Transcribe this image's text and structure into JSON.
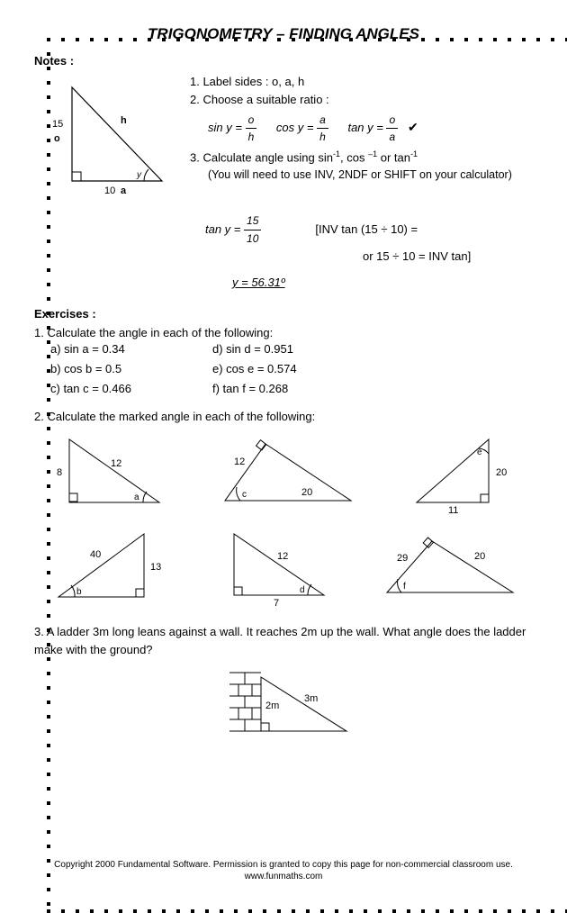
{
  "title": "TRIGONOMETRY – FINDING ANGLES",
  "notes_label": "Notes :",
  "exercises_label": "Exercises :",
  "diagram": {
    "o_val": "15",
    "o_lbl": "o",
    "a_val": "10",
    "a_lbl": "a",
    "h_lbl": "h",
    "angle": "y"
  },
  "step1": "1.  Label sides : o, a, h",
  "step2": "2.  Choose a suitable ratio :",
  "ratios": {
    "sin_l": "sin y =",
    "cos_l": "cos y =",
    "tan_l": "tan y =",
    "o": "o",
    "a": "a",
    "h": "h"
  },
  "step3a": "3.  Calculate angle using sin",
  "step3b": ", cos ",
  "step3c": " or tan",
  "step3_note": "(You will need to use INV, 2NDF or SHIFT on your calculator)",
  "worked": {
    "lhs": "tan y =",
    "num": "15",
    "den": "10",
    "rhs1": "[INV tan (15 ÷ 10) =",
    "rhs2": "or 15 ÷ 10 = INV tan]",
    "answer": "y = 56.31º"
  },
  "ex1": {
    "q": "1.  Calculate the angle in each of the following:",
    "a": "a)   sin a = 0.34",
    "b": "b)   cos b = 0.5",
    "c": "c)   tan c = 0.466",
    "d": "d)   sin d = 0.951",
    "e": "e)   cos e = 0.574",
    "f": "f)    tan f = 0.268"
  },
  "ex2": {
    "q": "2.  Calculate the marked angle in each of the following:",
    "tri_a": {
      "s1": "8",
      "s2": "12",
      "ang": "a"
    },
    "tri_b": {
      "s1": "12",
      "s2": "20",
      "ang": "c"
    },
    "tri_c": {
      "s1": "20",
      "s2": "11",
      "ang": "e"
    },
    "tri_d": {
      "s1": "40",
      "s2": "13",
      "ang": "b"
    },
    "tri_e": {
      "s1": "12",
      "s2": "7",
      "ang": "d"
    },
    "tri_f": {
      "s1": "29",
      "s2": "20",
      "ang": "f"
    }
  },
  "ex3": {
    "q": "3.  A ladder 3m long leans against a wall.  It reaches 2m up the wall.  What angle does the ladder make with the ground?",
    "wall": "2m",
    "ladder": "3m"
  },
  "footer1": "Copyright 2000 Fundamental Software.    Permission is granted to copy this page for non-commercial classroom use.",
  "footer2": "www.funmaths.com"
}
